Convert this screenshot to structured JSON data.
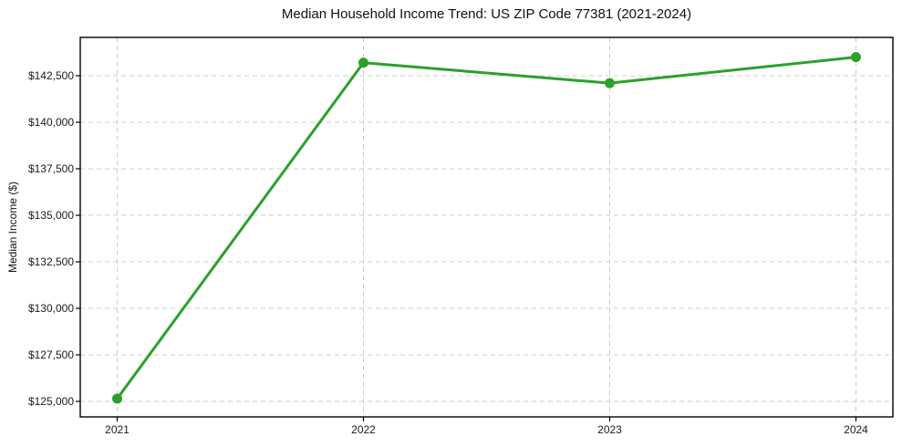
{
  "chart_data": {
    "type": "line",
    "title": "Median Household Income Trend: US ZIP Code 77381 (2021-2024)",
    "xlabel": "",
    "ylabel": "Median Income ($)",
    "x": [
      2021,
      2022,
      2023,
      2024
    ],
    "xtick_labels": [
      "2021",
      "2022",
      "2023",
      "2024"
    ],
    "series": [
      {
        "name": "Median Household Income",
        "values": [
          125150,
          143200,
          142100,
          143500
        ]
      }
    ],
    "yticks": [
      125000,
      127500,
      130000,
      132500,
      135000,
      137500,
      140000,
      142500
    ],
    "ytick_labels": [
      "$125,000",
      "$127,500",
      "$130,000",
      "$132,500",
      "$135,000",
      "$137,500",
      "$140,000",
      "$142,500"
    ],
    "xlim": [
      2020.85,
      2024.15
    ],
    "ylim": [
      124167,
      144559
    ],
    "grid": true,
    "legend": "none",
    "colors": {
      "line": "#2ca02c",
      "marker": "#2ca02c",
      "grid": "#cccccc",
      "axis": "#000000",
      "text": "#1a1a1a"
    }
  }
}
